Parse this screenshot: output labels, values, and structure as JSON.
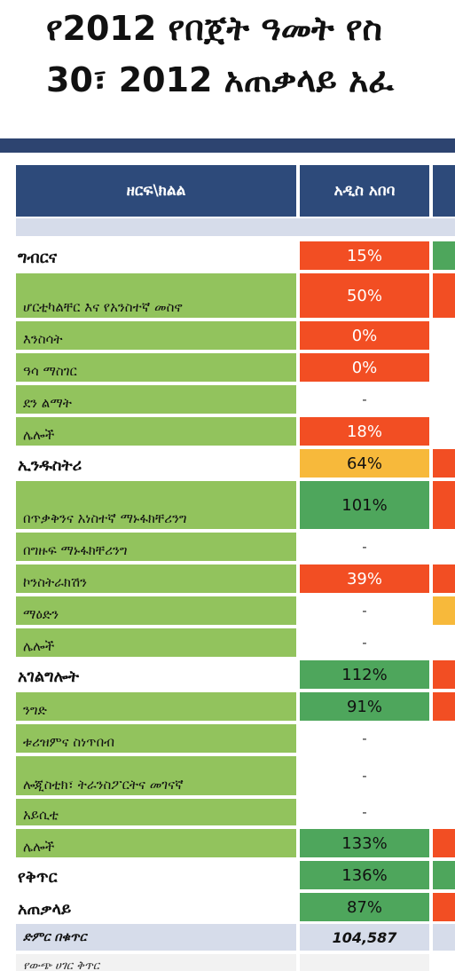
{
  "title": {
    "line1": "የ2012 የበጀት ዓመት የስ",
    "line2": "30፣ 2012 አጠቃላይ አፈ"
  },
  "header": {
    "col_sector": "ዘርፍ\\ክልል",
    "col_addis": "አዲስ አበባ"
  },
  "colors": {
    "red": "#f24e23",
    "green": "#4ea65c",
    "yellow": "#f7b93b",
    "sub_label": "#92c35d",
    "header": "#2d4a7a"
  },
  "rows": [
    {
      "label": "ግብርና",
      "value": "15%",
      "status": "red",
      "next": "green",
      "section": true
    },
    {
      "label": "ሆርቲካልቸር እና የአንስተኛ መስኖ",
      "value": "50%",
      "status": "red",
      "next": "red",
      "section": false
    },
    {
      "label": "እንስሳት",
      "value": "0%",
      "status": "red",
      "next": "",
      "section": false
    },
    {
      "label": "ዓሳ ማስገር",
      "value": "0%",
      "status": "red",
      "next": "",
      "section": false
    },
    {
      "label": "ደን ልማት",
      "value": "-",
      "status": "none",
      "next": "",
      "section": false
    },
    {
      "label": "ሌሎች",
      "value": "18%",
      "status": "red",
      "next": "",
      "section": false
    },
    {
      "label": "ኢንዱስትሪ",
      "value": "64%",
      "status": "yellow",
      "next": "red",
      "section": true
    },
    {
      "label": "በጥቃቅንና አነስተኛ ማኑፋክቸሪንግ",
      "value": "101%",
      "status": "green",
      "next": "red",
      "section": false
    },
    {
      "label": "በግዙፍ ማኑፋክቸሪንግ",
      "value": "-",
      "status": "none",
      "next": "",
      "section": false
    },
    {
      "label": "ኮንስትራክሽን",
      "value": "39%",
      "status": "red",
      "next": "red",
      "section": false
    },
    {
      "label": "ማዕድን",
      "value": "-",
      "status": "none",
      "next": "yellow",
      "section": false
    },
    {
      "label": "ሌሎች",
      "value": "-",
      "status": "none",
      "next": "",
      "section": false
    },
    {
      "label": "አገልግሎት",
      "value": "112%",
      "status": "green",
      "next": "red",
      "section": true
    },
    {
      "label": "ንግድ",
      "value": "91%",
      "status": "green",
      "next": "red",
      "section": false
    },
    {
      "label": "ቱሪዝምና ስነጥበብ",
      "value": "-",
      "status": "none",
      "next": "",
      "section": false
    },
    {
      "label": "ሎጂስቲክ፣ ትራንስፖርትና መገናኛ",
      "value": "-",
      "status": "none",
      "next": "",
      "section": false
    },
    {
      "label": "አይሲቲ",
      "value": "-",
      "status": "none",
      "next": "",
      "section": false
    },
    {
      "label": "ሌሎች",
      "value": "133%",
      "status": "green",
      "next": "red",
      "section": false
    },
    {
      "label": "የቅጥር",
      "value": "136%",
      "status": "green",
      "next": "green",
      "section": true
    },
    {
      "label": "አጠቃላይ",
      "value": "87%",
      "status": "green",
      "next": "red",
      "section": true
    }
  ],
  "total": {
    "label": "ድምር በቁጥር",
    "value": "104,587"
  },
  "cutoff_row": {
    "label": "የውጭ ሀገር ቅጥር"
  }
}
